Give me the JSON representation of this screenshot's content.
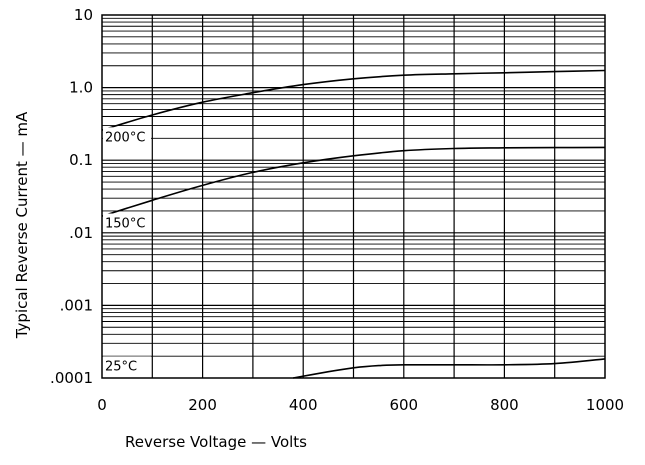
{
  "chart_data": {
    "type": "line",
    "title": "",
    "xlabel": "Reverse Voltage — Volts",
    "ylabel": "Typical Reverse Current — mA",
    "xlim": [
      0,
      1000
    ],
    "ylim": [
      0.0001,
      10
    ],
    "yscale": "log",
    "grid": true,
    "legend": "none",
    "x_ticks": [
      0,
      200,
      400,
      600,
      800,
      1000
    ],
    "x_tick_labels": [
      "0",
      "200",
      "400",
      "600",
      "800",
      "1000"
    ],
    "y_ticks": [
      0.0001,
      0.001,
      0.01,
      0.1,
      1,
      10
    ],
    "y_tick_labels": [
      ".0001",
      ".001",
      ".01",
      "0.1",
      "1.0",
      "10"
    ],
    "series": [
      {
        "name": "200°C",
        "x": [
          0,
          100,
          200,
          300,
          400,
          500,
          600,
          700,
          800,
          900,
          1000
        ],
        "y": [
          0.26,
          0.42,
          0.63,
          0.85,
          1.1,
          1.32,
          1.48,
          1.55,
          1.6,
          1.66,
          1.72
        ]
      },
      {
        "name": "150°C",
        "x": [
          0,
          100,
          200,
          300,
          400,
          500,
          600,
          700,
          800,
          900,
          1000
        ],
        "y": [
          0.017,
          0.028,
          0.045,
          0.068,
          0.092,
          0.115,
          0.135,
          0.145,
          0.148,
          0.149,
          0.15
        ]
      },
      {
        "name": "25°C",
        "x": [
          380,
          450,
          500,
          550,
          600,
          700,
          800,
          900,
          1000
        ],
        "y": [
          0.0001,
          0.000122,
          0.000138,
          0.000148,
          0.000152,
          0.000152,
          0.000152,
          0.000158,
          0.000183
        ]
      }
    ]
  }
}
